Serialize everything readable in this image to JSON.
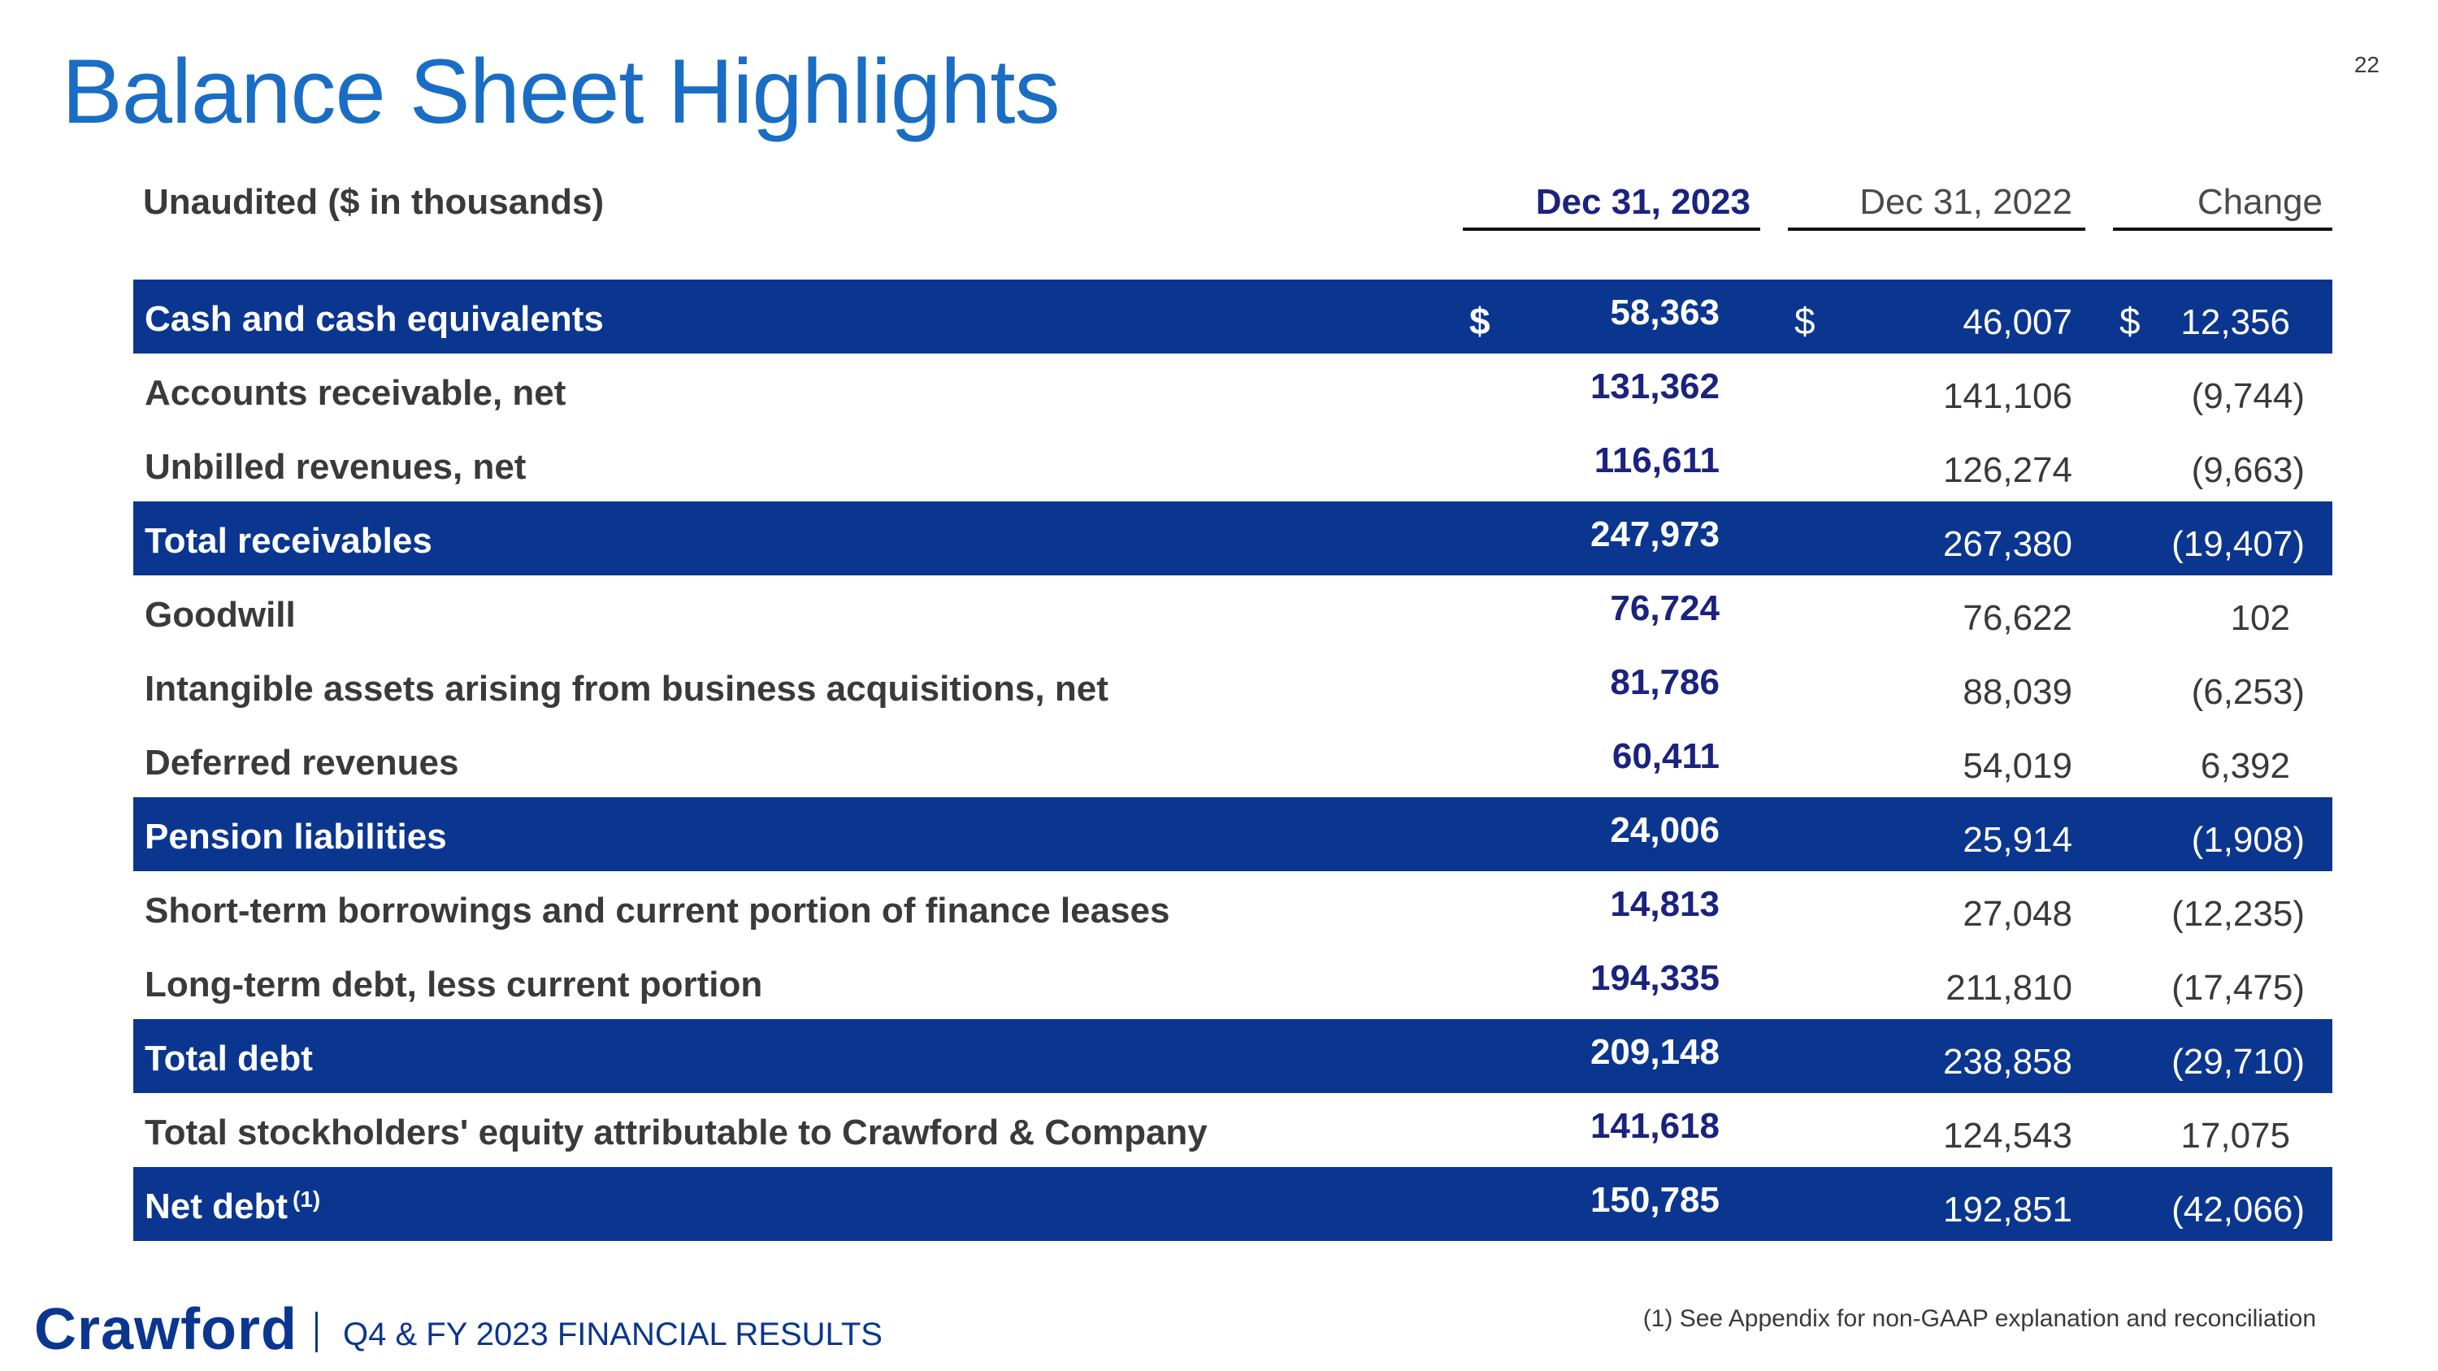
{
  "page_number": "22",
  "title": "Balance Sheet Highlights",
  "header": {
    "label": "Unaudited ($ in thousands)",
    "col1": "Dec 31, 2023",
    "col2": "Dec 31, 2022",
    "col3": "Change"
  },
  "rows": [
    {
      "label": "Cash and cash equivalents",
      "sup": "",
      "cur1": "$",
      "v2023": "58,363",
      "cur2": "$",
      "v2022": "46,007",
      "cur3": "$",
      "change": "12,356"
    },
    {
      "label": "Accounts receivable, net",
      "sup": "",
      "cur1": "",
      "v2023": "131,362",
      "cur2": "",
      "v2022": "141,106",
      "cur3": "",
      "change": "(9,744)"
    },
    {
      "label": "Unbilled revenues, net",
      "sup": "",
      "cur1": "",
      "v2023": "116,611",
      "cur2": "",
      "v2022": "126,274",
      "cur3": "",
      "change": "(9,663)"
    },
    {
      "label": "Total receivables",
      "sup": "",
      "cur1": "",
      "v2023": "247,973",
      "cur2": "",
      "v2022": "267,380",
      "cur3": "",
      "change": "(19,407)"
    },
    {
      "label": "Goodwill",
      "sup": "",
      "cur1": "",
      "v2023": "76,724",
      "cur2": "",
      "v2022": "76,622",
      "cur3": "",
      "change": "102"
    },
    {
      "label": "Intangible assets arising from business acquisitions, net",
      "sup": "",
      "cur1": "",
      "v2023": "81,786",
      "cur2": "",
      "v2022": "88,039",
      "cur3": "",
      "change": "(6,253)"
    },
    {
      "label": "Deferred revenues",
      "sup": "",
      "cur1": "",
      "v2023": "60,411",
      "cur2": "",
      "v2022": "54,019",
      "cur3": "",
      "change": "6,392"
    },
    {
      "label": "Pension liabilities",
      "sup": "",
      "cur1": "",
      "v2023": "24,006",
      "cur2": "",
      "v2022": "25,914",
      "cur3": "",
      "change": "(1,908)"
    },
    {
      "label": "Short-term borrowings and current portion of finance leases",
      "sup": "",
      "cur1": "",
      "v2023": "14,813",
      "cur2": "",
      "v2022": "27,048",
      "cur3": "",
      "change": "(12,235)"
    },
    {
      "label": "Long-term debt, less current portion",
      "sup": "",
      "cur1": "",
      "v2023": "194,335",
      "cur2": "",
      "v2022": "211,810",
      "cur3": "",
      "change": "(17,475)"
    },
    {
      "label": "Total debt",
      "sup": "",
      "cur1": "",
      "v2023": "209,148",
      "cur2": "",
      "v2022": "238,858",
      "cur3": "",
      "change": "(29,710)"
    },
    {
      "label": "Total stockholders' equity attributable to Crawford & Company",
      "sup": "",
      "cur1": "",
      "v2023": "141,618",
      "cur2": "",
      "v2022": "124,543",
      "cur3": "",
      "change": "17,075"
    },
    {
      "label": "Net debt",
      "sup": "(1)",
      "cur1": "",
      "v2023": "150,785",
      "cur2": "",
      "v2022": "192,851",
      "cur3": "",
      "change": "(42,066)"
    }
  ],
  "footer": {
    "logo": "Crawford",
    "text": "Q4 & FY 2023 FINANCIAL RESULTS",
    "footnote": "(1) See Appendix for non-GAAP explanation and reconciliation"
  },
  "colors": {
    "title_blue": "#1a6dc4",
    "band_navy": "#0b3690",
    "value_navy": "#1a237e"
  }
}
